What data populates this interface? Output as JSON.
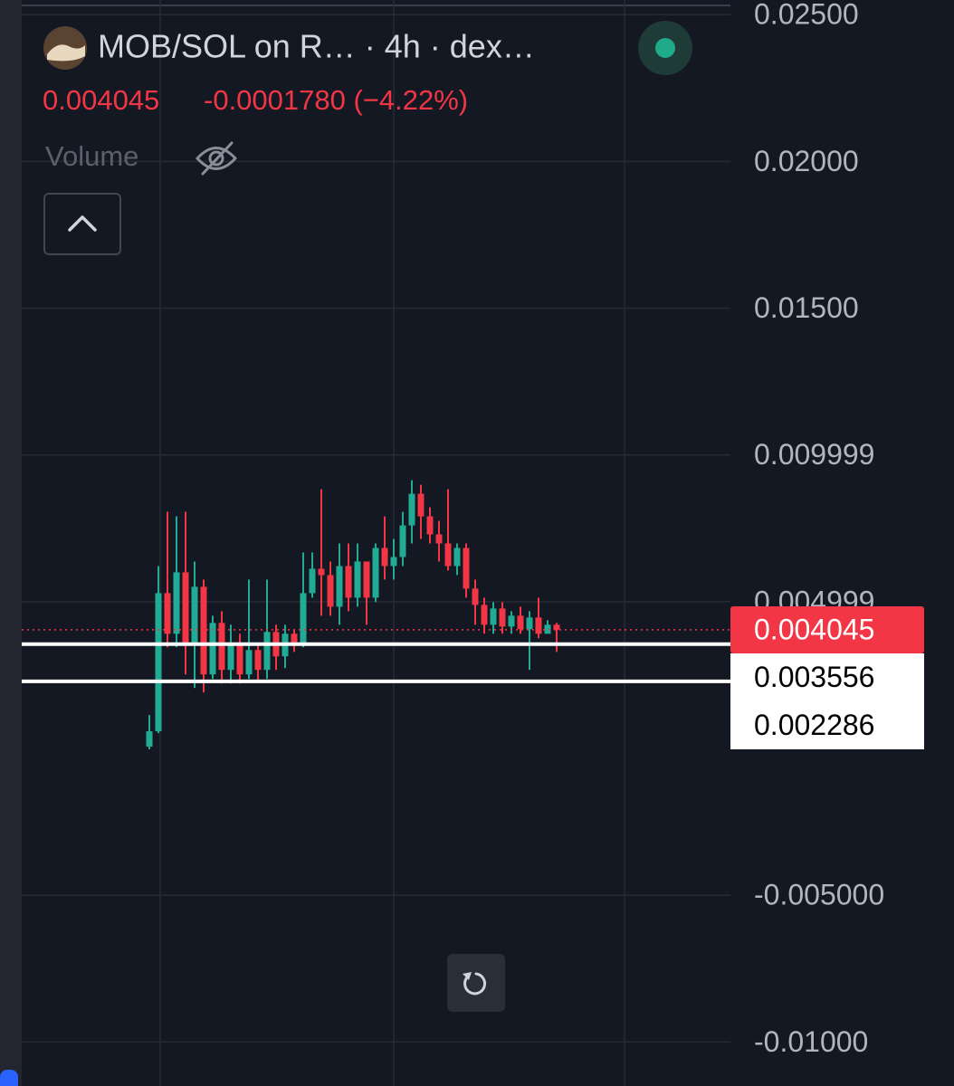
{
  "header": {
    "title": "MOB/SOL on R… · 4h · dex…",
    "last": "0.004045",
    "change": "-0.0001780 (−4.22%)",
    "indicator": "Volume"
  },
  "chart_data": {
    "type": "candlestick",
    "up_color": "#22ab94",
    "down_color": "#f23645",
    "ylim": [
      -0.0115,
      0.0255
    ],
    "yticks": [
      {
        "value": 0.025,
        "label": "0.02500"
      },
      {
        "value": 0.02,
        "label": "0.02000"
      },
      {
        "value": 0.015,
        "label": "0.01500"
      },
      0.009999,
      0.004999,
      {
        "value": -0.005,
        "label": "-0.005000"
      },
      {
        "value": -0.01,
        "label": "-0.01000"
      }
    ],
    "grid": true,
    "open": [
      6.2e-05,
      0.000585,
      0.005292,
      0.003908,
      0.006,
      0.0036,
      0.005508,
      0.002523,
      0.004277,
      0.002677,
      0.003538,
      0.002523,
      0.003354,
      0.002677,
      0.003969,
      0.003138,
      0.003908,
      0.003538,
      0.005292,
      0.006123,
      0.005908,
      0.004831,
      0.006215,
      0.005138,
      0.006369,
      0.005138,
      0.006831,
      0.006215,
      0.006523,
      0.0076,
      0.008677,
      0.007908,
      0.007292,
      0.006985,
      0.006215,
      0.006831,
      0.005446,
      0.004892,
      0.004215,
      0.004769,
      0.004154,
      0.004523,
      0.004062,
      0.004462,
      0.003908,
      0.004215
    ],
    "high": [
      0.001138,
      0.006215,
      0.008062,
      0.007908,
      0.008062,
      0.006369,
      0.005754,
      0.004523,
      0.004677,
      0.004215,
      0.003908,
      0.005754,
      0.0036,
      0.005754,
      0.004215,
      0.004215,
      0.004062,
      0.006677,
      0.006677,
      0.008831,
      0.006369,
      0.006985,
      0.006985,
      0.006985,
      0.006369,
      0.006985,
      0.007908,
      0.007138,
      0.008062,
      0.009138,
      0.008985,
      0.008215,
      0.007754,
      0.008831,
      0.006985,
      0.006985,
      0.005754,
      0.005138,
      0.004985,
      0.004985,
      0.004677,
      0.004831,
      0.004677,
      0.005138,
      0.004369,
      0.004277
    ],
    "low": [
      -3.1e-05,
      0.000523,
      0.003446,
      0.003446,
      0.002523,
      0.002062,
      0.001908,
      0.002369,
      0.002215,
      0.002215,
      0.002215,
      0.002369,
      0.002308,
      0.002369,
      0.002677,
      0.002738,
      0.003292,
      0.003446,
      0.005138,
      0.004523,
      0.004523,
      0.004215,
      0.004677,
      0.004831,
      0.004215,
      0.004985,
      0.005754,
      0.005754,
      0.006215,
      0.006985,
      0.007138,
      0.006985,
      0.006369,
      0.006062,
      0.005908,
      0.005138,
      0.004215,
      0.003908,
      0.003908,
      0.003908,
      0.003908,
      0.003908,
      0.002677,
      0.003754,
      0.003908,
      0.003292
    ],
    "close": [
      0.000585,
      0.005292,
      0.003908,
      0.006,
      0.0036,
      0.005508,
      0.002523,
      0.004277,
      0.002677,
      0.003538,
      0.002523,
      0.003354,
      0.002677,
      0.003969,
      0.003138,
      0.003908,
      0.003538,
      0.005292,
      0.006123,
      0.005908,
      0.004831,
      0.006215,
      0.005138,
      0.006369,
      0.005138,
      0.006831,
      0.006215,
      0.006523,
      0.0076,
      0.008677,
      0.007908,
      0.007292,
      0.006985,
      0.006215,
      0.006831,
      0.005446,
      0.004892,
      0.004215,
      0.004769,
      0.004154,
      0.004523,
      0.004062,
      0.004462,
      0.003908,
      0.004215,
      0.004045
    ],
    "price_lines": [
      {
        "value": 0.004045,
        "color": "#f23645",
        "style": "dotted"
      },
      {
        "value": 0.003556,
        "color": "#ffffff",
        "style": "solid"
      },
      {
        "value": 0.002286,
        "color": "#ffffff",
        "style": "solid"
      }
    ]
  }
}
